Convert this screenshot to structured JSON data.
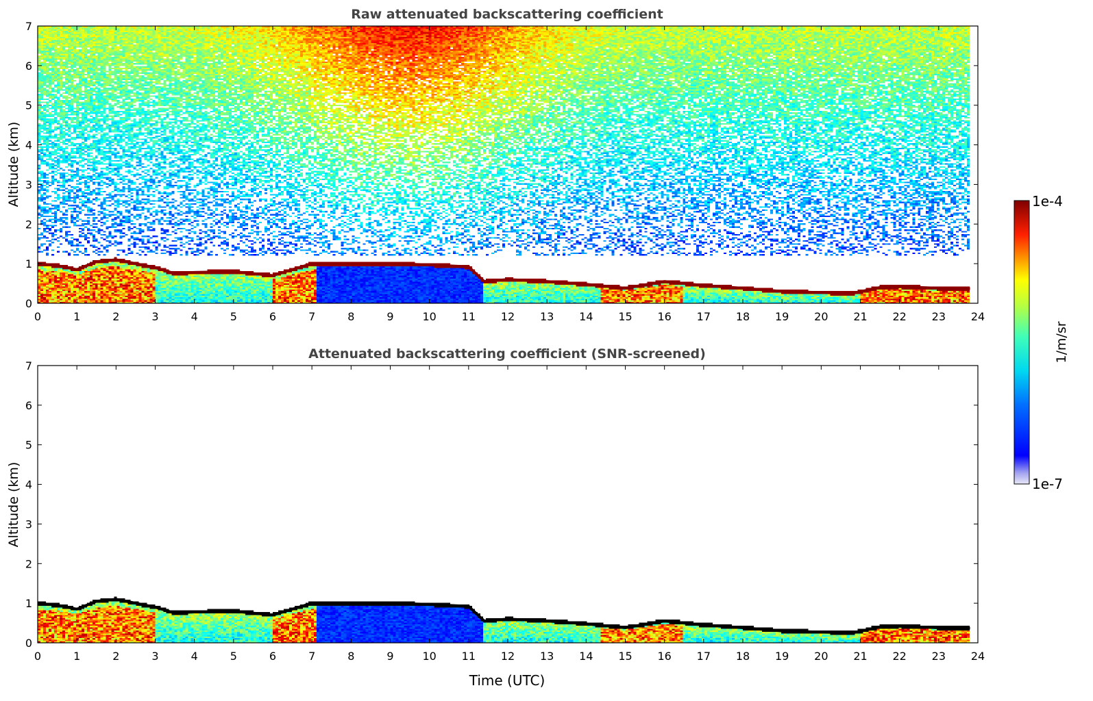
{
  "chart_data": [
    {
      "type": "heatmap",
      "title": "Raw attenuated backscattering coefficient",
      "xlabel": "",
      "ylabel": "Altitude (km)",
      "xlim": [
        0,
        24
      ],
      "ylim": [
        0,
        7
      ],
      "x_ticks": [
        "0",
        "1",
        "2",
        "3",
        "4",
        "5",
        "6",
        "7",
        "8",
        "9",
        "10",
        "11",
        "12",
        "13",
        "14",
        "15",
        "16",
        "17",
        "18",
        "19",
        "20",
        "21",
        "22",
        "23",
        "24"
      ],
      "y_ticks": [
        "0",
        "1",
        "2",
        "3",
        "4",
        "5",
        "6",
        "7"
      ],
      "data_end_time": 23.8,
      "boundary_layer_top": {
        "time": [
          0,
          0.5,
          1,
          1.5,
          2,
          2.5,
          3,
          3.5,
          4,
          5,
          6,
          7,
          8,
          9,
          10,
          11,
          11.4,
          12,
          13,
          14,
          15,
          16,
          17,
          18,
          19,
          20,
          20.8,
          21.5,
          22,
          23,
          23.8
        ],
        "altitude_km": [
          1.0,
          0.95,
          0.85,
          1.05,
          1.1,
          1.0,
          0.9,
          0.75,
          0.78,
          0.8,
          0.7,
          1.0,
          1.0,
          1.0,
          0.97,
          0.92,
          0.55,
          0.6,
          0.55,
          0.48,
          0.38,
          0.55,
          0.45,
          0.38,
          0.3,
          0.27,
          0.25,
          0.4,
          0.42,
          0.38,
          0.37
        ]
      },
      "noise": "strong random signal above boundary layer, increasing with altitude and peaking around 8-11 UTC"
    },
    {
      "type": "heatmap",
      "title": "Attenuated backscattering coefficient (SNR-screened)",
      "xlabel": "Time (UTC)",
      "ylabel": "Altitude (km)",
      "xlim": [
        0,
        24
      ],
      "ylim": [
        0,
        7
      ],
      "x_ticks": [
        "0",
        "1",
        "2",
        "3",
        "4",
        "5",
        "6",
        "7",
        "8",
        "9",
        "10",
        "11",
        "12",
        "13",
        "14",
        "15",
        "16",
        "17",
        "18",
        "19",
        "20",
        "21",
        "22",
        "23",
        "24"
      ],
      "y_ticks": [
        "0",
        "1",
        "2",
        "3",
        "4",
        "5",
        "6",
        "7"
      ],
      "data_end_time": 23.8,
      "boundary_layer_top": {
        "time": [
          0,
          0.5,
          1,
          1.5,
          2,
          2.5,
          3,
          3.5,
          4,
          5,
          6,
          7,
          8,
          9,
          10,
          11,
          11.4,
          12,
          13,
          14,
          15,
          16,
          17,
          18,
          19,
          20,
          20.8,
          21.5,
          22,
          23,
          23.8
        ],
        "altitude_km": [
          1.0,
          0.95,
          0.85,
          1.05,
          1.1,
          1.0,
          0.9,
          0.75,
          0.78,
          0.8,
          0.7,
          1.0,
          1.0,
          1.0,
          0.97,
          0.92,
          0.55,
          0.6,
          0.55,
          0.48,
          0.38,
          0.55,
          0.45,
          0.38,
          0.3,
          0.27,
          0.25,
          0.4,
          0.42,
          0.38,
          0.37
        ]
      },
      "noise": "screened: only boundary-layer signal remains"
    }
  ],
  "colorbar": {
    "colormap": "jet",
    "max_label": "1e-4",
    "min_label": "1e-7",
    "unit_label": "1/m/sr",
    "scale": "log",
    "range": [
      1e-07,
      0.0001
    ]
  }
}
